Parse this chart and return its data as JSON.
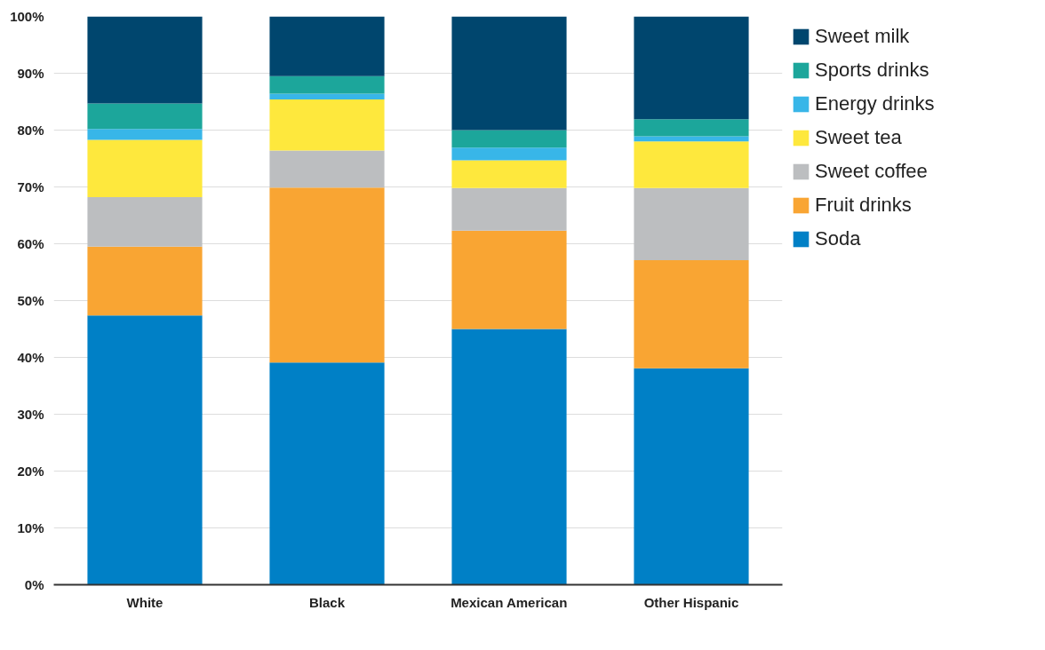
{
  "chart_data": {
    "type": "bar",
    "stacked": true,
    "categories": [
      "White",
      "Black",
      "Mexican American",
      "Other Hispanic"
    ],
    "series": [
      {
        "name": "Soda",
        "color": "#0080c6",
        "values": [
          47.4,
          39.1,
          45.0,
          38.1
        ]
      },
      {
        "name": "Fruit drinks",
        "color": "#f9a533",
        "values": [
          12.1,
          30.8,
          17.3,
          19.0
        ]
      },
      {
        "name": "Sweet coffee",
        "color": "#bcbec0",
        "values": [
          8.7,
          6.5,
          7.5,
          12.7
        ]
      },
      {
        "name": "Sweet tea",
        "color": "#fee83d",
        "values": [
          10.1,
          9.0,
          4.9,
          8.2
        ]
      },
      {
        "name": "Energy drinks",
        "color": "#38b6e8",
        "values": [
          1.9,
          1.0,
          2.2,
          0.9
        ]
      },
      {
        "name": "Sports drinks",
        "color": "#1ca69b",
        "values": [
          4.5,
          3.1,
          3.1,
          3.0
        ]
      },
      {
        "name": "Sweet milk",
        "color": "#00466e",
        "values": [
          15.3,
          10.5,
          20.0,
          18.1
        ]
      }
    ],
    "ylim": [
      0,
      100
    ],
    "yticks": [
      {
        "value": 0,
        "label": "0%"
      },
      {
        "value": 10,
        "label": "10%"
      },
      {
        "value": 20,
        "label": "20%"
      },
      {
        "value": 30,
        "label": "30%"
      },
      {
        "value": 40,
        "label": "40%"
      },
      {
        "value": 50,
        "label": "50%"
      },
      {
        "value": 60,
        "label": "60%"
      },
      {
        "value": 70,
        "label": "70%"
      },
      {
        "value": 80,
        "label": "80%"
      },
      {
        "value": 90,
        "label": "90%"
      },
      {
        "value": 100,
        "label": "100%"
      }
    ],
    "grid": "y",
    "legend": "top right"
  }
}
